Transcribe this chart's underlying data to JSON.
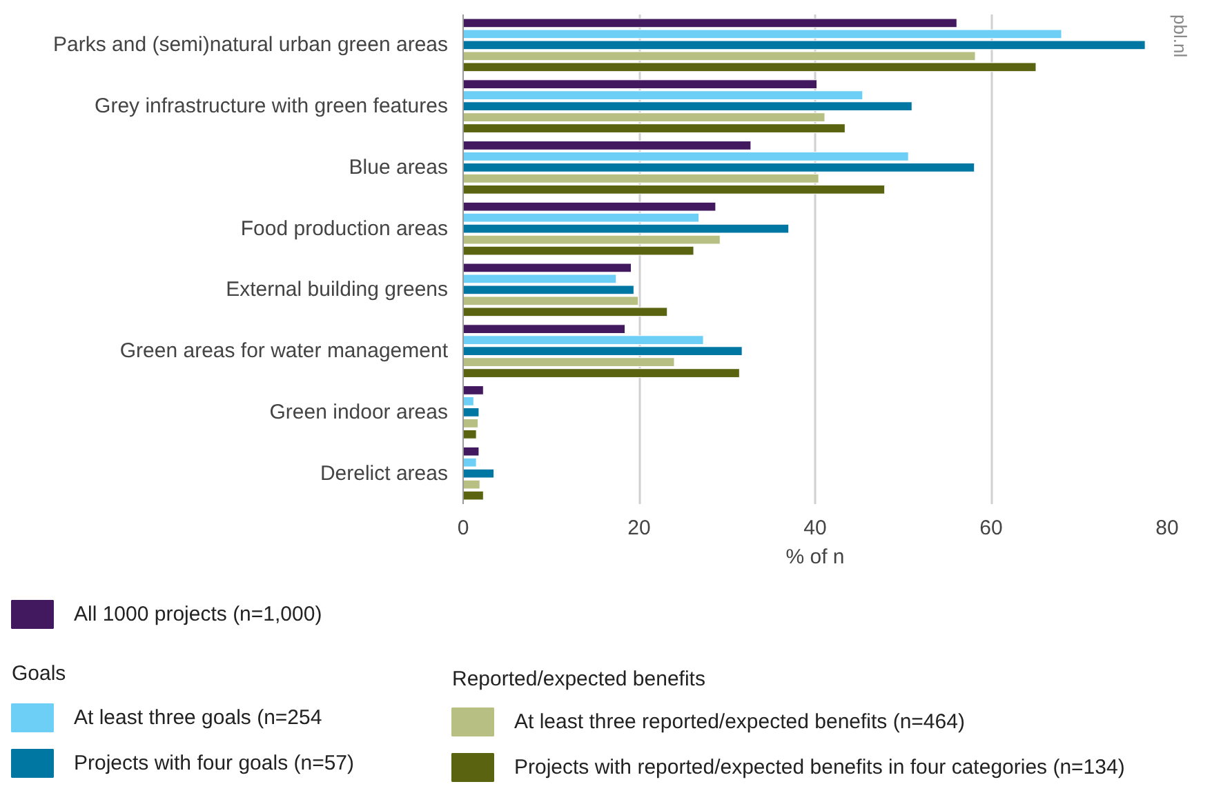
{
  "chart_data": {
    "type": "bar",
    "orientation": "horizontal",
    "categories": [
      "Parks and (semi)natural urban green areas",
      "Grey infrastructure with green features",
      "Blue areas",
      "Food production areas",
      "External building greens",
      "Green areas for water management",
      "Green indoor areas",
      "Derelict areas"
    ],
    "series": [
      {
        "name": "All 1000 projects (n=1,000)",
        "color": "#42195e",
        "values": [
          56.1,
          40.2,
          32.7,
          28.7,
          19.1,
          18.4,
          2.3,
          1.8
        ]
      },
      {
        "name": "At least three goals (n=254",
        "color": "#6dcff6",
        "values": [
          68.0,
          45.4,
          50.6,
          26.8,
          17.4,
          27.3,
          1.2,
          1.5
        ]
      },
      {
        "name": "Projects with four goals (n=57)",
        "color": "#0077a3",
        "values": [
          77.5,
          51.0,
          58.1,
          37.0,
          19.4,
          31.7,
          1.8,
          3.5
        ]
      },
      {
        "name": "At least three reported/expected benefits (n=464)",
        "color": "#b8bf83",
        "values": [
          58.2,
          41.1,
          40.4,
          29.2,
          19.9,
          24.0,
          1.7,
          1.9
        ]
      },
      {
        "name": "Projects with reported/expected benefits in four categories (n=134)",
        "color": "#5a6410",
        "values": [
          65.1,
          43.4,
          47.9,
          26.2,
          23.2,
          31.4,
          1.5,
          2.3
        ]
      }
    ],
    "xlabel": "% of n",
    "xlim": [
      0,
      80
    ],
    "xticks": [
      0,
      20,
      40,
      60,
      80
    ],
    "grid": "x",
    "legend": "bottom",
    "annotations": [
      "Goals",
      "Reported/expected benefits",
      "pbl.nl"
    ]
  }
}
